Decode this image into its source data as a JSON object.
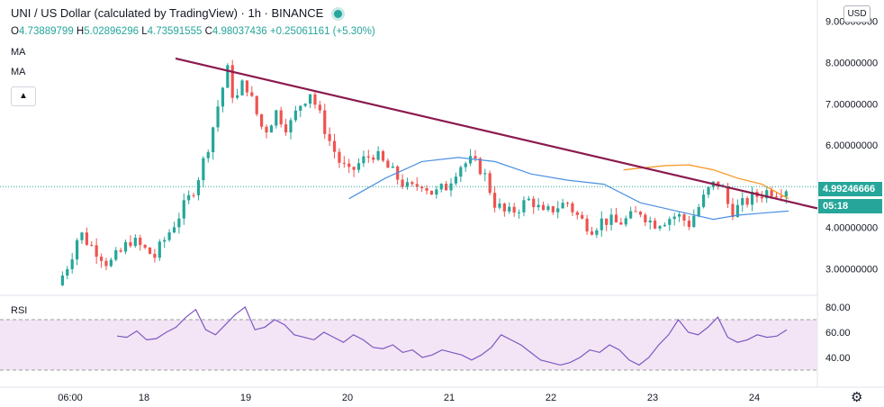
{
  "header": {
    "symbol": "UNI / US Dollar (calculated by TradingView) · 1h · BINANCE",
    "ohlc_o_label": "O",
    "ohlc_o": "4.73889799",
    "ohlc_h_label": "H",
    "ohlc_h": "5.02896296",
    "ohlc_l_label": "L",
    "ohlc_l": "4.73591555",
    "ohlc_c_label": "C",
    "ohlc_c": "4.98037436",
    "ohlc_change": "+0.25061161 (+5.30%)",
    "ma1_label": "MA",
    "ma2_label": "MA",
    "collapse_icon": "chevron-up-icon"
  },
  "scale": {
    "currency": "USD",
    "last_price": "4.99246666",
    "countdown": "05:18",
    "settings_icon": "gear-icon"
  },
  "rsi": {
    "label": "RSI",
    "ticks": [
      "80.00",
      "60.00",
      "40.00"
    ],
    "upper_band": 70,
    "lower_band": 30
  },
  "colors": {
    "up": "#26a69a",
    "down": "#ef5350",
    "ma_fast": "#f7931a",
    "ma_slow": "#4a90e2",
    "trendline": "#8b1a4e",
    "rsi_line": "#7e57c2",
    "rsi_band_fill": "#f3e5f5"
  },
  "chart_data": {
    "type": "candlestick",
    "title": "UNI / US Dollar (calculated by TradingView) · 1h · BINANCE",
    "x_ticks": [
      "06:00",
      "18",
      "19",
      "20",
      "21",
      "22",
      "23",
      "24"
    ],
    "y_ticks": [
      "9.00000000",
      "8.00000000",
      "7.00000000",
      "6.00000000",
      "5.00000000",
      "4.00000000",
      "3.00000000"
    ],
    "ylim": [
      2.4,
      9.3
    ],
    "close_path": [
      [
        0,
        2.6
      ],
      [
        10,
        3.2
      ],
      [
        18,
        3.9
      ],
      [
        26,
        3.6
      ],
      [
        34,
        3.4
      ],
      [
        42,
        3.1
      ],
      [
        52,
        3.4
      ],
      [
        60,
        3.7
      ],
      [
        70,
        3.5
      ],
      [
        80,
        3.3
      ],
      [
        90,
        3.8
      ],
      [
        100,
        4.3
      ],
      [
        110,
        4.8
      ],
      [
        118,
        5.4
      ],
      [
        126,
        6.2
      ],
      [
        134,
        7.2
      ],
      [
        140,
        7.8
      ],
      [
        146,
        7.0
      ],
      [
        154,
        7.6
      ],
      [
        162,
        6.9
      ],
      [
        170,
        6.3
      ],
      [
        180,
        6.8
      ],
      [
        190,
        6.4
      ],
      [
        200,
        7.0
      ],
      [
        208,
        7.3
      ],
      [
        216,
        6.7
      ],
      [
        224,
        6.1
      ],
      [
        232,
        5.6
      ],
      [
        240,
        5.3
      ],
      [
        250,
        5.6
      ],
      [
        260,
        5.8
      ],
      [
        270,
        5.5
      ],
      [
        280,
        5.2
      ],
      [
        290,
        4.9
      ],
      [
        300,
        5.1
      ],
      [
        310,
        4.8
      ],
      [
        320,
        5.0
      ],
      [
        330,
        5.5
      ],
      [
        340,
        5.6
      ],
      [
        350,
        5.4
      ],
      [
        360,
        4.6
      ],
      [
        370,
        4.3
      ],
      [
        380,
        4.5
      ],
      [
        390,
        4.7
      ],
      [
        400,
        4.3
      ],
      [
        410,
        4.5
      ],
      [
        420,
        4.6
      ],
      [
        430,
        4.2
      ],
      [
        440,
        4.0
      ],
      [
        450,
        4.2
      ],
      [
        460,
        4.1
      ],
      [
        470,
        4.2
      ],
      [
        480,
        4.4
      ],
      [
        490,
        4.1
      ],
      [
        500,
        4.2
      ],
      [
        510,
        4.3
      ],
      [
        520,
        4.1
      ],
      [
        530,
        4.6
      ],
      [
        538,
        5.0
      ],
      [
        546,
        5.1
      ],
      [
        554,
        4.4
      ],
      [
        562,
        4.5
      ],
      [
        570,
        4.7
      ],
      [
        578,
        4.8
      ],
      [
        586,
        4.9
      ],
      [
        594,
        4.9
      ],
      [
        602,
        4.99
      ]
    ],
    "ma_fast_path": [
      [
        466,
        5.4
      ],
      [
        500,
        5.5
      ],
      [
        520,
        5.52
      ],
      [
        540,
        5.4
      ],
      [
        560,
        5.2
      ],
      [
        580,
        5.05
      ],
      [
        602,
        4.7
      ]
    ],
    "ma_slow_path": [
      [
        240,
        4.7
      ],
      [
        270,
        5.2
      ],
      [
        300,
        5.6
      ],
      [
        330,
        5.7
      ],
      [
        360,
        5.6
      ],
      [
        390,
        5.3
      ],
      [
        420,
        5.15
      ],
      [
        450,
        5.05
      ],
      [
        480,
        4.6
      ],
      [
        510,
        4.4
      ],
      [
        540,
        4.2
      ],
      [
        560,
        4.3
      ],
      [
        580,
        4.35
      ],
      [
        602,
        4.4
      ]
    ],
    "trendline": [
      [
        0,
        8.1
      ],
      [
        602,
        4.7
      ]
    ],
    "rsi_values": [
      57,
      56,
      61,
      54,
      55,
      60,
      64,
      72,
      78,
      62,
      58,
      66,
      74,
      80,
      62,
      64,
      70,
      66,
      58,
      56,
      54,
      60,
      56,
      52,
      58,
      54,
      48,
      47,
      50,
      44,
      46,
      40,
      42,
      46,
      44,
      42,
      38,
      42,
      48,
      58,
      54,
      50,
      44,
      38,
      36,
      34,
      36,
      40,
      46,
      44,
      50,
      46,
      38,
      34,
      40,
      50,
      58,
      70,
      60,
      58,
      64,
      72,
      56,
      52,
      54,
      58,
      56,
      57,
      62
    ]
  }
}
